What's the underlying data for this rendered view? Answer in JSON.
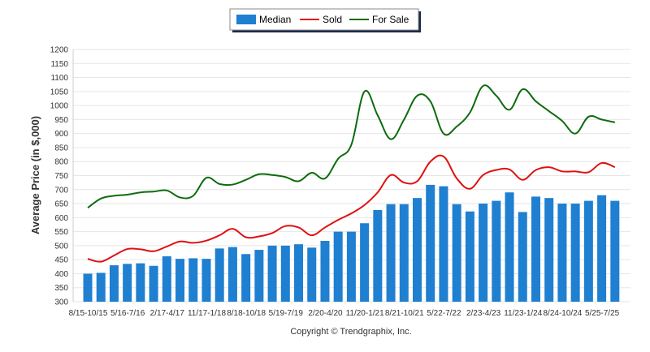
{
  "chart_data": {
    "type": "bar",
    "ylabel": "Average Price (in $,000)",
    "ylim": [
      300,
      1200
    ],
    "yticks": [
      300,
      350,
      400,
      450,
      500,
      550,
      600,
      650,
      700,
      750,
      800,
      850,
      900,
      950,
      1000,
      1050,
      1100,
      1150,
      1200
    ],
    "grid": true,
    "legend_position": "top-center",
    "footer": "Copyright © Trendgraphix, Inc.",
    "x_tick_labels": [
      "8/15-10/15",
      "5/16-7/16",
      "2/17-4/17",
      "11/17-1/18",
      "8/18-10/18",
      "5/19-7/19",
      "2/20-4/20",
      "11/20-1/21",
      "8/21-10/21",
      "5/22-7/22",
      "2/23-4/23",
      "11/23-1/24",
      "8/24-10/24",
      "5/25-7/25"
    ],
    "series": [
      {
        "name": "Median",
        "type": "bar",
        "color": "#1f7fd1",
        "values": [
          400,
          403,
          430,
          435,
          437,
          428,
          462,
          453,
          455,
          453,
          490,
          495,
          470,
          485,
          500,
          500,
          505,
          493,
          517,
          550,
          550,
          580,
          627,
          648,
          648,
          670,
          717,
          712,
          648,
          622,
          650,
          660,
          690,
          620,
          675,
          670,
          650,
          650,
          660,
          680,
          660
        ]
      },
      {
        "name": "Sold",
        "type": "line",
        "color": "#e01010",
        "values": [
          453,
          443,
          465,
          488,
          487,
          480,
          497,
          515,
          510,
          518,
          537,
          560,
          530,
          533,
          545,
          570,
          565,
          537,
          565,
          592,
          615,
          645,
          690,
          752,
          725,
          730,
          800,
          818,
          740,
          703,
          752,
          770,
          772,
          735,
          770,
          780,
          765,
          765,
          762,
          795,
          780
        ]
      },
      {
        "name": "For Sale",
        "type": "line",
        "color": "#0d6b0d",
        "values": [
          635,
          668,
          678,
          682,
          690,
          693,
          697,
          672,
          678,
          742,
          720,
          718,
          735,
          755,
          752,
          745,
          730,
          760,
          740,
          810,
          860,
          1050,
          965,
          880,
          950,
          1035,
          1015,
          900,
          925,
          975,
          1070,
          1035,
          985,
          1058,
          1015,
          980,
          945,
          900,
          960,
          950,
          940
        ]
      }
    ]
  }
}
